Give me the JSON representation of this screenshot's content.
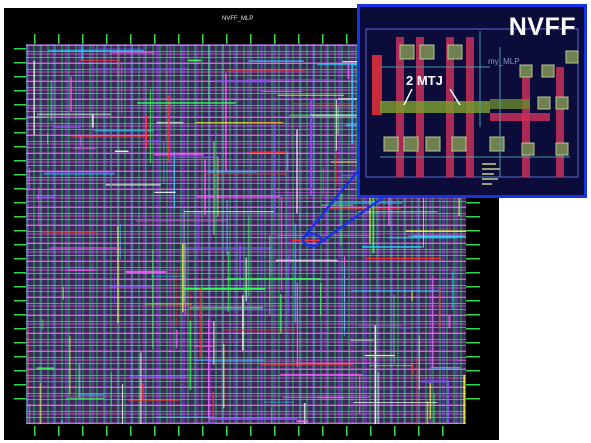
{
  "layout": {
    "title": "NVFF_MLP",
    "colors": {
      "metal_green": "#3cff5a",
      "metal_yellow": "#ffff3c",
      "metal_magenta": "#ff5aff",
      "poly_purple": "#8c50ff",
      "background": "#000000"
    }
  },
  "zoom": {
    "title": "NVFF",
    "cell_name": "my_MLP",
    "annotation": "2 MTJ",
    "border_color": "#1832e6"
  }
}
